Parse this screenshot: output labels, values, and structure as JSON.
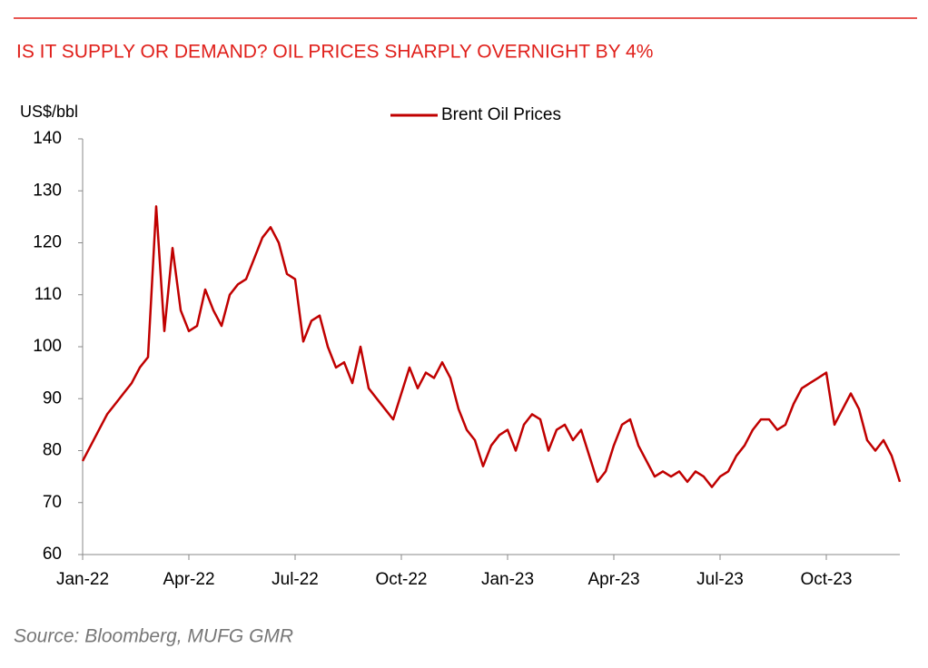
{
  "chart_data": {
    "type": "line",
    "title": "IS IT SUPPLY OR DEMAND? OIL PRICES SHARPLY OVERNIGHT BY 4%",
    "y_label": "US$/bbl",
    "source": "Source: Bloomberg, MUFG GMR",
    "categories": [
      "Jan-22",
      null,
      null,
      null,
      null,
      null,
      null,
      null,
      null,
      null,
      null,
      null,
      null,
      "Apr-22",
      null,
      null,
      null,
      null,
      null,
      null,
      null,
      null,
      null,
      null,
      null,
      null,
      "Jul-22",
      null,
      null,
      null,
      null,
      null,
      null,
      null,
      null,
      null,
      null,
      null,
      null,
      "Oct-22",
      null,
      null,
      null,
      null,
      null,
      null,
      null,
      null,
      null,
      null,
      null,
      null,
      "Jan-23",
      null,
      null,
      null,
      null,
      null,
      null,
      null,
      null,
      null,
      null,
      null,
      null,
      "Apr-23",
      null,
      null,
      null,
      null,
      null,
      null,
      null,
      null,
      null,
      null,
      null,
      null,
      "Jul-23",
      null,
      null,
      null,
      null,
      null,
      null,
      null,
      null,
      null,
      null,
      null,
      null,
      "Oct-23",
      null,
      null,
      null,
      null,
      null,
      null,
      null,
      null,
      null
    ],
    "series": [
      {
        "name": "Brent Oil Prices",
        "color": "#c00000",
        "values": [
          78,
          81,
          84,
          87,
          89,
          91,
          93,
          96,
          98,
          127,
          103,
          119,
          107,
          103,
          104,
          111,
          107,
          104,
          110,
          112,
          113,
          117,
          121,
          123,
          120,
          114,
          113,
          101,
          105,
          106,
          100,
          96,
          97,
          93,
          100,
          92,
          90,
          88,
          86,
          91,
          96,
          92,
          95,
          94,
          97,
          94,
          88,
          84,
          82,
          77,
          81,
          83,
          84,
          80,
          85,
          87,
          86,
          80,
          84,
          85,
          82,
          84,
          79,
          74,
          76,
          81,
          85,
          86,
          81,
          78,
          75,
          76,
          75,
          76,
          74,
          76,
          75,
          73,
          75,
          76,
          79,
          81,
          84,
          86,
          86,
          84,
          85,
          89,
          92,
          93,
          94,
          95,
          85,
          88,
          91,
          88,
          82,
          80,
          82,
          79,
          74
        ]
      }
    ],
    "ylim": [
      60,
      140
    ],
    "yticks": [
      60,
      70,
      80,
      90,
      100,
      110,
      120,
      130,
      140
    ],
    "grid": false,
    "legend": "top"
  }
}
